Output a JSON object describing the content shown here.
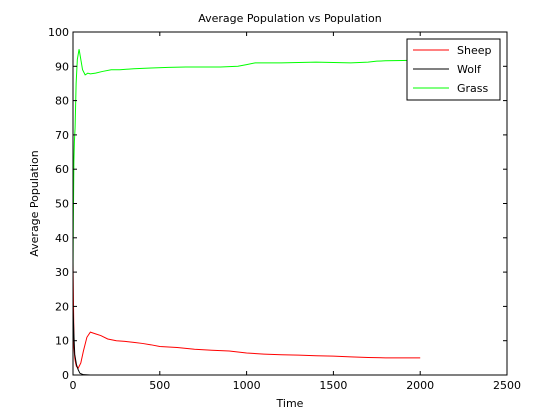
{
  "chart_data": {
    "type": "line",
    "title": "Average Population vs Population",
    "xlabel": "Time",
    "ylabel": "Average Population",
    "xlim": [
      0,
      2500
    ],
    "ylim": [
      0,
      100
    ],
    "x_ticks": [
      0,
      500,
      1000,
      1500,
      2000,
      2500
    ],
    "y_ticks": [
      0,
      10,
      20,
      30,
      40,
      50,
      60,
      70,
      80,
      90,
      100
    ],
    "grid": false,
    "legend_position": "top-right",
    "series": [
      {
        "name": "Sheep",
        "color": "#ff0000",
        "x": [
          0,
          3,
          6,
          10,
          15,
          20,
          30,
          45,
          60,
          80,
          100,
          130,
          160,
          200,
          250,
          300,
          350,
          400,
          450,
          500,
          600,
          700,
          800,
          900,
          1000,
          1100,
          1200,
          1300,
          1400,
          1500,
          1600,
          1700,
          1800,
          1900,
          2000
        ],
        "y": [
          33,
          20,
          8,
          5,
          3.5,
          2.5,
          2,
          3.5,
          7,
          11,
          12.5,
          12,
          11.5,
          10.5,
          10,
          9.8,
          9.5,
          9.2,
          8.8,
          8.3,
          8,
          7.5,
          7.2,
          7,
          6.4,
          6.1,
          5.9,
          5.8,
          5.6,
          5.5,
          5.3,
          5.1,
          5,
          5,
          5
        ]
      },
      {
        "name": "Wolf",
        "color": "#000000",
        "x": [
          0,
          5,
          10,
          20,
          30,
          40,
          60,
          100,
          500,
          1000,
          1500,
          2000
        ],
        "y": [
          20,
          12,
          6,
          3,
          1.5,
          0.5,
          0.1,
          0,
          0,
          0,
          0,
          0
        ]
      },
      {
        "name": "Grass",
        "color": "#00ff00",
        "x": [
          0,
          2,
          5,
          8,
          12,
          18,
          25,
          35,
          45,
          55,
          70,
          85,
          100,
          130,
          170,
          220,
          270,
          350,
          450,
          550,
          650,
          750,
          850,
          950,
          1000,
          1050,
          1200,
          1400,
          1600,
          1700,
          1750,
          1800,
          1900,
          2000
        ],
        "y": [
          30,
          45,
          62,
          68,
          72,
          85,
          92,
          95,
          92,
          89,
          87.5,
          88,
          87.8,
          88,
          88.5,
          89,
          89,
          89.3,
          89.5,
          89.7,
          89.8,
          89.8,
          89.8,
          90,
          90.5,
          91,
          91,
          91.2,
          91,
          91.2,
          91.5,
          91.6,
          91.7,
          91.8
        ]
      }
    ]
  }
}
